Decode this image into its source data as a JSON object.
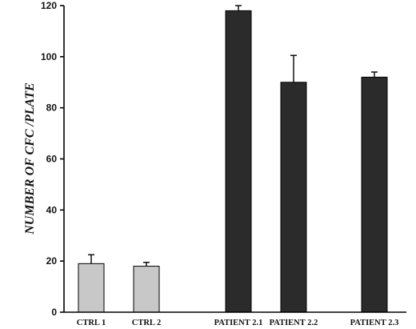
{
  "chart_data": {
    "type": "bar",
    "title": "",
    "xlabel": "",
    "ylabel": "NUMBER OF CFC /PLATE",
    "ylim": [
      0,
      120
    ],
    "yticks": [
      0,
      20,
      40,
      60,
      80,
      100,
      120
    ],
    "grid": false,
    "categories": [
      "CTRL 1",
      "CTRL 2",
      "PATIENT 2.1",
      "PATIENT 2.2",
      "PATIENT 2.3"
    ],
    "values": [
      19,
      18,
      118,
      90,
      92
    ],
    "errors": [
      3.5,
      1.5,
      2,
      10.5,
      2
    ],
    "colors": [
      "#c8c8c8",
      "#c8c8c8",
      "#2b2b2b",
      "#2b2b2b",
      "#2b2b2b"
    ]
  }
}
